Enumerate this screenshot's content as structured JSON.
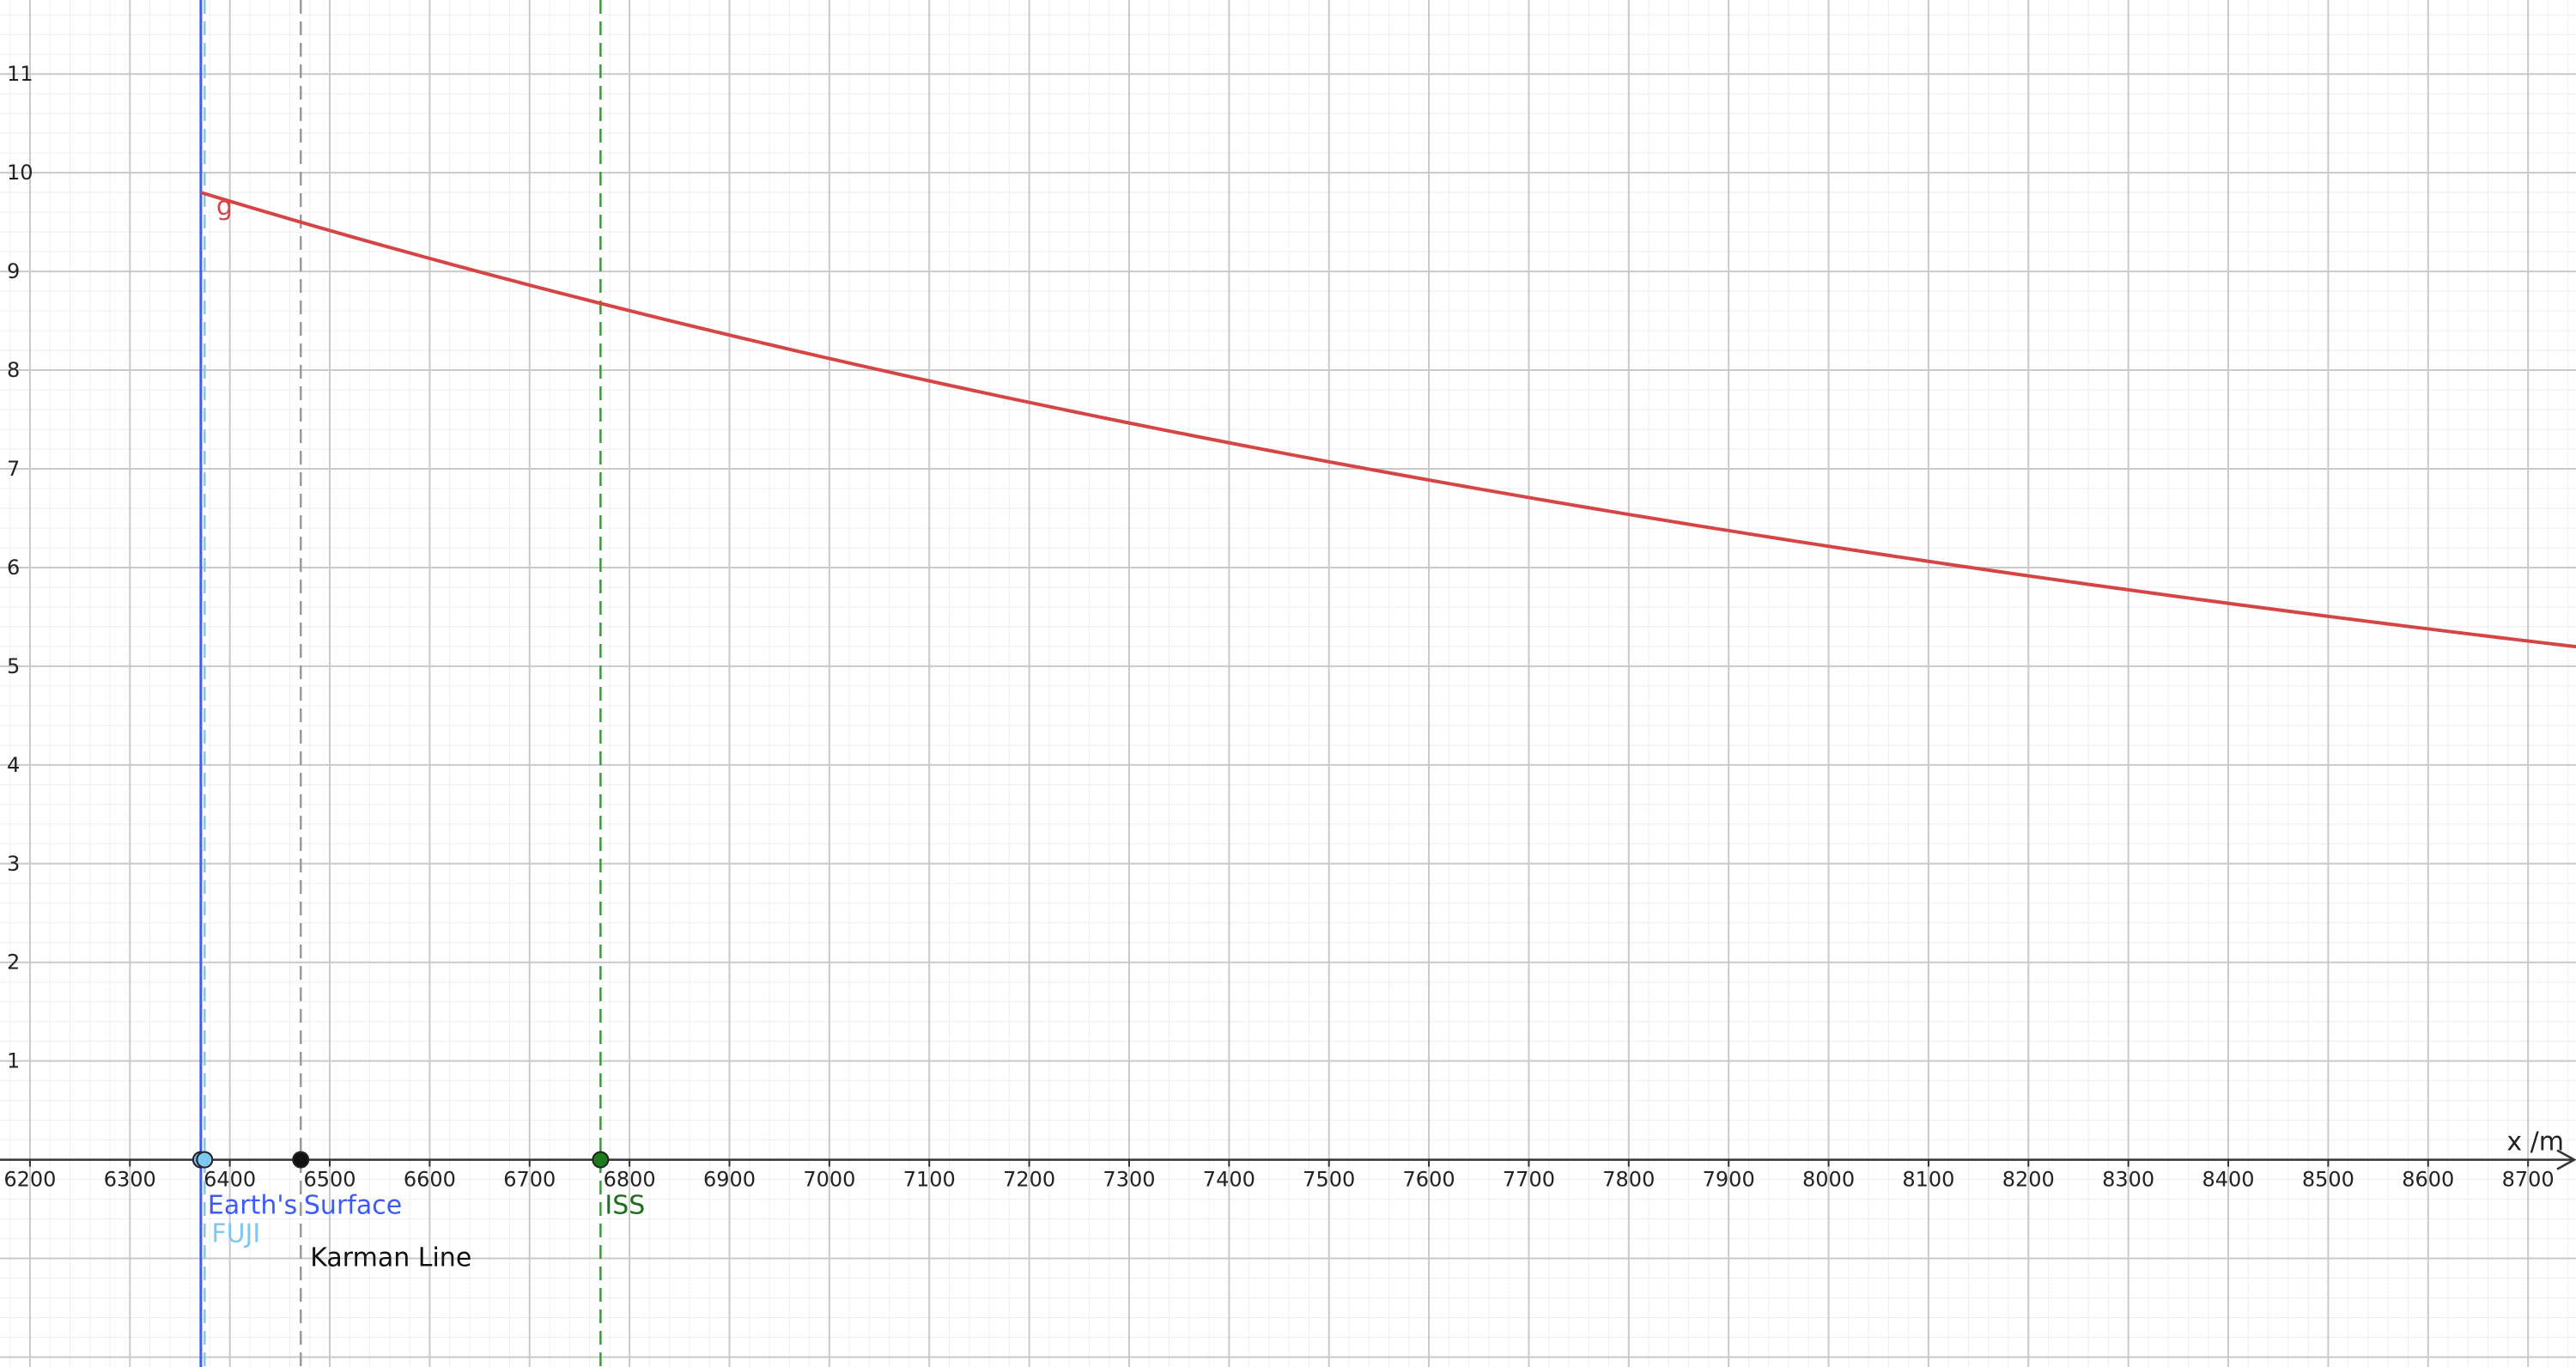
{
  "chart_data": {
    "type": "line",
    "title": "",
    "xlabel": "x /m",
    "ylabel": "",
    "xlim": [
      6170,
      8748
    ],
    "ylim": [
      -2.1,
      11.75
    ],
    "x_ticks": [
      6200,
      6300,
      6400,
      6500,
      6600,
      6700,
      6800,
      6900,
      7000,
      7100,
      7200,
      7300,
      7400,
      7500,
      7600,
      7700,
      7800,
      7900,
      8000,
      8100,
      8200,
      8300,
      8400,
      8500,
      8600,
      8700
    ],
    "y_ticks": [
      1,
      2,
      3,
      4,
      5,
      6,
      7,
      8,
      9,
      10,
      11
    ],
    "grid": true,
    "minor_grid": true,
    "series": [
      {
        "name": "g",
        "color": "#d64545",
        "formula_note": "g(x) = 9.8 * (6371 / x)^2",
        "x_start": 6371,
        "x_end": 8748,
        "scale": 9.8,
        "ref": 6371
      }
    ],
    "markers": [
      {
        "label_parts": [
          "Earth's",
          "Surface"
        ],
        "x": 6371,
        "color": "#3b5bff",
        "line_style": "solid",
        "point_fill": "#7fb8f0"
      },
      {
        "label": "FUJI",
        "x": 6374.8,
        "color": "#7ec8f0",
        "line_style": "dashed",
        "point_fill": "#7ec8f0"
      },
      {
        "label": "Karman Line",
        "x": 6471,
        "color": "#999999",
        "line_style": "dashed",
        "point_fill": "#111111"
      },
      {
        "label": "ISS",
        "x": 6771,
        "color": "#3a9a3a",
        "line_style": "dashed",
        "point_fill": "#1e7a1e"
      }
    ]
  }
}
